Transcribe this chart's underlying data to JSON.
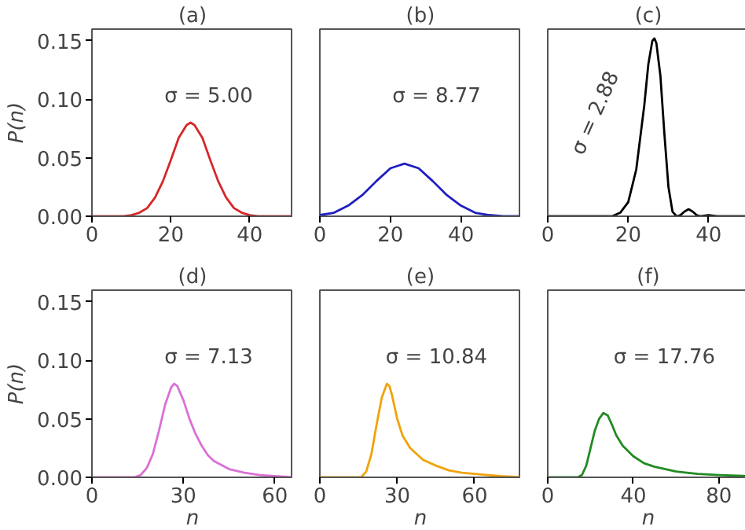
{
  "chart_data": [
    {
      "type": "line",
      "title": "(a)",
      "ylabel": "P(n)",
      "annotations": [
        "σ = 5.00"
      ],
      "xlim": [
        0,
        51
      ],
      "ylim": [
        0,
        0.16
      ],
      "xticks": [
        0,
        20,
        40
      ],
      "yticks": [
        {
          "value": 0,
          "label": "0.00"
        },
        {
          "value": 0.05,
          "label": "0.05"
        },
        {
          "value": 0.1,
          "label": "0.10"
        },
        {
          "value": 0.15,
          "label": "0.15"
        }
      ],
      "grid": false,
      "series": [
        {
          "color": "#d62728",
          "x": [
            0,
            8,
            10,
            12,
            14,
            16,
            18,
            20,
            22,
            24,
            25,
            26,
            28,
            30,
            32,
            34,
            36,
            38,
            40,
            42,
            51
          ],
          "values": [
            0,
            0,
            0.001,
            0.003,
            0.007,
            0.016,
            0.03,
            0.048,
            0.067,
            0.078,
            0.08,
            0.078,
            0.067,
            0.048,
            0.03,
            0.016,
            0.007,
            0.003,
            0.001,
            0,
            0
          ]
        }
      ]
    },
    {
      "type": "line",
      "title": "(b)",
      "annotations": [
        "σ = 8.77"
      ],
      "xlim": [
        0,
        57
      ],
      "ylim": [
        0,
        0.16
      ],
      "xticks": [
        0,
        20,
        40
      ],
      "tick_labels": "x",
      "grid": false,
      "series": [
        {
          "color": "#1f1fbf",
          "x": [
            0,
            4,
            8,
            12,
            16,
            20,
            24,
            28,
            32,
            36,
            40,
            44,
            48,
            52,
            57
          ],
          "values": [
            0.001,
            0.003,
            0.009,
            0.018,
            0.03,
            0.041,
            0.045,
            0.041,
            0.03,
            0.018,
            0.009,
            0.003,
            0.001,
            0,
            0
          ]
        }
      ]
    },
    {
      "type": "line",
      "title": "(c)",
      "annotations": [
        "σ = 2.88"
      ],
      "xlim": [
        0,
        50
      ],
      "ylim": [
        0,
        0.16
      ],
      "xticks": [
        0,
        20,
        40
      ],
      "tick_labels": "x",
      "grid": false,
      "series": [
        {
          "color": "#000000",
          "x": [
            0,
            16,
            18,
            20,
            22,
            24,
            25,
            26,
            26.5,
            27,
            28,
            29,
            30,
            31,
            32,
            33,
            34,
            35,
            36,
            37,
            38,
            40,
            42,
            50
          ],
          "values": [
            0,
            0,
            0.003,
            0.012,
            0.04,
            0.095,
            0.13,
            0.15,
            0.152,
            0.148,
            0.12,
            0.07,
            0.025,
            0.004,
            0,
            0.001,
            0.004,
            0.006,
            0.004,
            0.001,
            0,
            0.001,
            0,
            0
          ]
        }
      ]
    },
    {
      "type": "line",
      "title": "(d)",
      "xlabel": "n",
      "ylabel": "P(n)",
      "annotations": [
        "σ = 7.13"
      ],
      "xlim": [
        0,
        66
      ],
      "ylim": [
        0,
        0.16
      ],
      "xticks": [
        0,
        30,
        60
      ],
      "yticks": [
        {
          "value": 0,
          "label": "0.00"
        },
        {
          "value": 0.05,
          "label": "0.05"
        },
        {
          "value": 0.1,
          "label": "0.10"
        },
        {
          "value": 0.15,
          "label": "0.15"
        }
      ],
      "grid": false,
      "series": [
        {
          "color": "#da70d6",
          "x": [
            0,
            14,
            16,
            18,
            20,
            22,
            24,
            26,
            27,
            28,
            30,
            32,
            34,
            36,
            38,
            40,
            45,
            50,
            55,
            60,
            66
          ],
          "values": [
            0,
            0,
            0.002,
            0.008,
            0.02,
            0.04,
            0.062,
            0.077,
            0.08,
            0.078,
            0.066,
            0.05,
            0.037,
            0.027,
            0.019,
            0.014,
            0.007,
            0.004,
            0.002,
            0.001,
            0
          ]
        }
      ]
    },
    {
      "type": "line",
      "title": "(e)",
      "xlabel": "n",
      "annotations": [
        "σ = 10.84"
      ],
      "xlim": [
        0,
        78
      ],
      "ylim": [
        0,
        0.16
      ],
      "xticks": [
        0,
        30,
        60
      ],
      "tick_labels": "x",
      "grid": false,
      "series": [
        {
          "color": "#f0a30a",
          "x": [
            0,
            16,
            18,
            20,
            22,
            24,
            26,
            27,
            28,
            30,
            32,
            35,
            40,
            45,
            50,
            55,
            60,
            65,
            70,
            78
          ],
          "values": [
            0,
            0,
            0.005,
            0.02,
            0.045,
            0.068,
            0.08,
            0.078,
            0.07,
            0.05,
            0.036,
            0.025,
            0.015,
            0.01,
            0.006,
            0.004,
            0.003,
            0.002,
            0.001,
            0
          ]
        }
      ]
    },
    {
      "type": "line",
      "title": "(f)",
      "xlabel": "n",
      "annotations": [
        "σ = 17.76"
      ],
      "xlim": [
        0,
        94
      ],
      "ylim": [
        0,
        0.16
      ],
      "xticks": [
        0,
        40,
        80
      ],
      "tick_labels": "x",
      "grid": false,
      "series": [
        {
          "color": "#228b22",
          "x": [
            0,
            14,
            16,
            18,
            20,
            22,
            24,
            26,
            28,
            30,
            32,
            35,
            40,
            45,
            50,
            60,
            70,
            80,
            94
          ],
          "values": [
            0,
            0,
            0.002,
            0.01,
            0.025,
            0.04,
            0.05,
            0.055,
            0.053,
            0.045,
            0.036,
            0.027,
            0.018,
            0.012,
            0.009,
            0.005,
            0.003,
            0.002,
            0.001
          ]
        }
      ]
    }
  ]
}
